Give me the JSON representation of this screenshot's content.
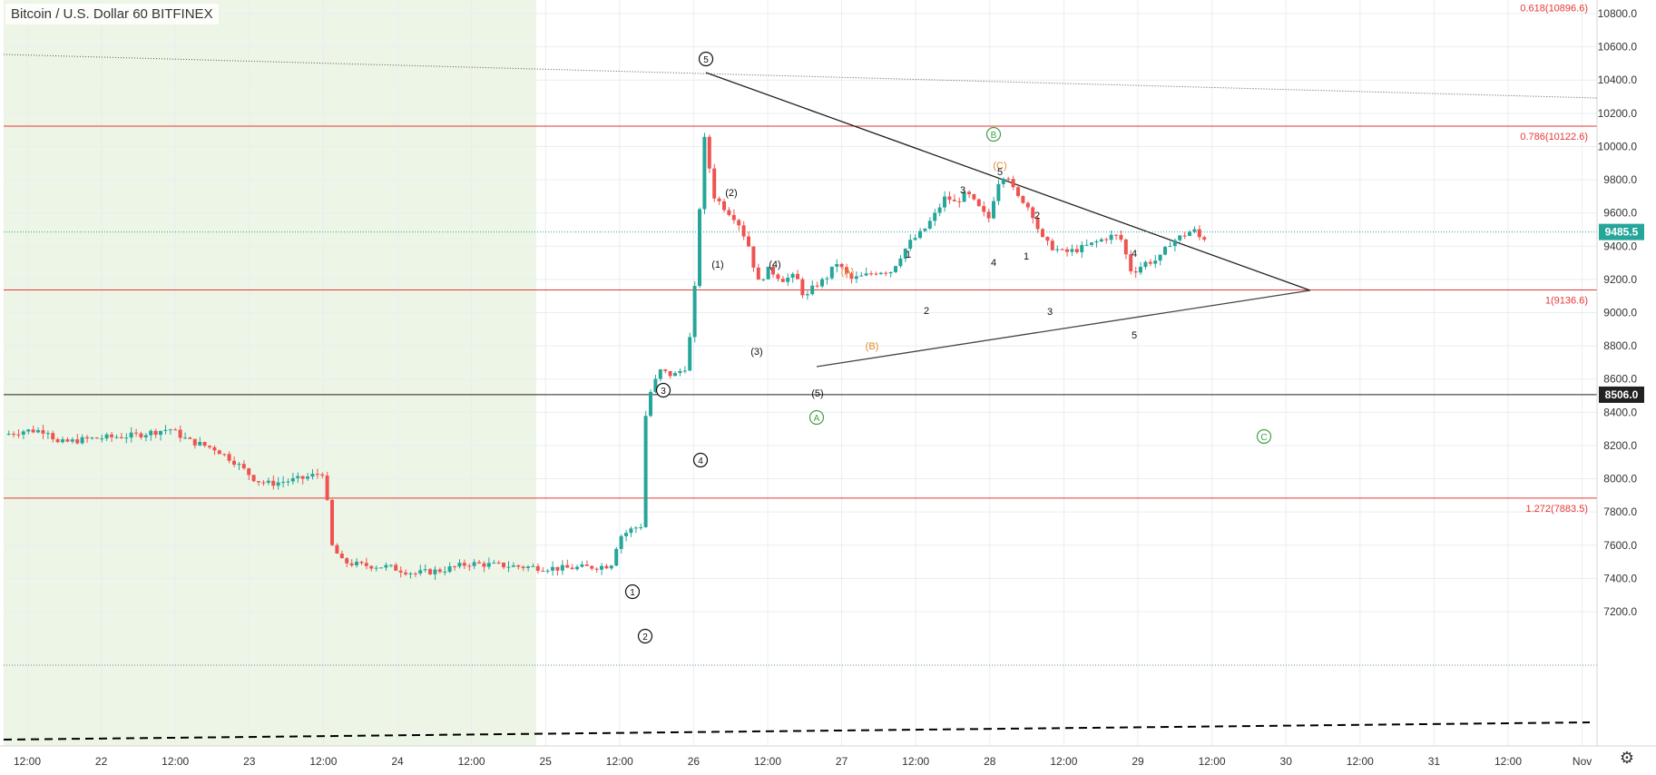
{
  "title": "Bitcoin / U.S. Dollar  60  BITFINEX",
  "gear_icon": "settings-gear-icon",
  "colors": {
    "up": "#26a69a",
    "down": "#ef5350",
    "grid": "#e9edf1",
    "shade": "#edf5e6",
    "fib_red": "#e53935",
    "price_tag_current": "#26a69a",
    "price_tag_level": "#222222",
    "wave_green": "#43a047",
    "wave_orange": "#e0892e"
  },
  "chart_data": {
    "type": "candlestick",
    "y_axis": {
      "range": [
        7050,
        10900
      ],
      "ticks": [
        "10800.0",
        "10600.0",
        "10400.0",
        "10200.0",
        "10000.0",
        "9800.0",
        "9600.0",
        "9400.0",
        "9200.0",
        "9000.0",
        "8800.0",
        "8600.0",
        "8400.0",
        "8200.0",
        "8000.0",
        "7800.0",
        "7600.0",
        "7400.0",
        "7200.0"
      ]
    },
    "x_axis": {
      "tick_labels": [
        "12:00",
        "22",
        "12:00",
        "23",
        "12:00",
        "24",
        "12:00",
        "25",
        "12:00",
        "26",
        "12:00",
        "27",
        "12:00",
        "28",
        "12:00",
        "29",
        "12:00",
        "30",
        "12:00",
        "31",
        "12:00",
        "Nov"
      ]
    },
    "current_price": "9485.5",
    "level_price": "8506.0",
    "fib_levels": [
      {
        "label": "0.618(10896.6)",
        "price": 10896.6
      },
      {
        "label": "0.786(10122.6)",
        "price": 10122.6
      },
      {
        "label": "1(9136.6)",
        "price": 9136.6
      },
      {
        "label": "1.272(7883.5)",
        "price": 7883.5
      }
    ],
    "waves": {
      "circled": [
        "5",
        "3",
        "4",
        "1",
        "2"
      ],
      "green": [
        "B",
        "A",
        "C"
      ],
      "intermediate": [
        "(1)",
        "(2)",
        "(3)",
        "(4)",
        "(5)"
      ],
      "orange": [
        "(A)",
        "(B)",
        "(C)"
      ],
      "minor": [
        "1",
        "2",
        "3",
        "4",
        "5",
        "1",
        "2",
        "3",
        "4",
        "5"
      ]
    }
  }
}
